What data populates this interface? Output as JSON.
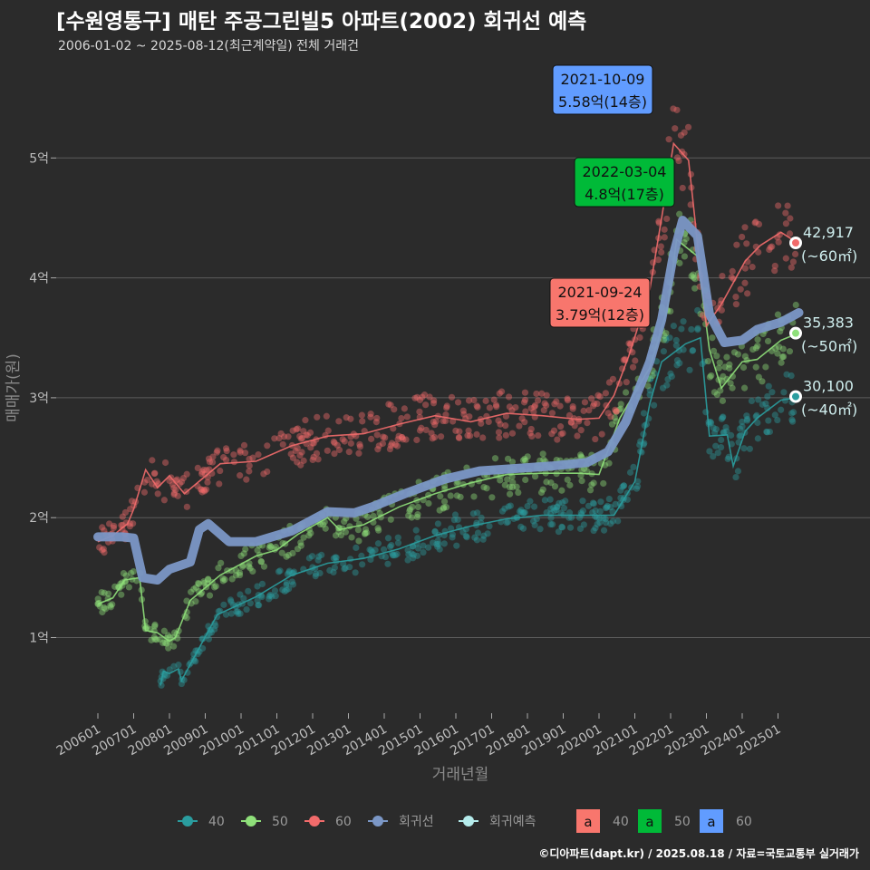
{
  "title": "[수원영통구] 매탄 주공그린빌5 아파트(2002) 회귀선 예측",
  "subtitle": "2006-01-02 ~ 2025-08-12(최근계약일) 전체 거래건",
  "footer": "©디아파트(dapt.kr) / 2025.08.18 / 자료=국토교통부 실거래가",
  "colors": {
    "s40": "#2a9d9f",
    "s50": "#8fe07a",
    "s60": "#f26b6b",
    "regression": "#7b97c6",
    "forecast": "#b5ecec",
    "box40": "#f8766d",
    "box50": "#00ba38",
    "box60": "#619cff"
  },
  "chart_data": {
    "type": "line",
    "xlabel": "거래년월",
    "ylabel": "매매가(원)",
    "x_tick_labels": [
      "200601",
      "200701",
      "200801",
      "200901",
      "201001",
      "201101",
      "201201",
      "201301",
      "201401",
      "201501",
      "201601",
      "201701",
      "201801",
      "201901",
      "202001",
      "202101",
      "202201",
      "202301",
      "202401",
      "202501"
    ],
    "y_tick_labels": [
      "1억",
      "2억",
      "3억",
      "4억",
      "5억"
    ],
    "ylim": [
      3500,
      58000
    ],
    "y_unit": "만원",
    "series": [
      {
        "name": "40",
        "key": "s40",
        "points": [
          [
            "2007-10",
            6000
          ],
          [
            "2007-11",
            7200
          ],
          [
            "2008-01",
            7000
          ],
          [
            "2008-04",
            7400
          ],
          [
            "2008-05",
            6400
          ],
          [
            "2009-05",
            11900
          ],
          [
            "2010-06",
            13400
          ],
          [
            "2011-06",
            15200
          ],
          [
            "2012-06",
            16200
          ],
          [
            "2013-06",
            16600
          ],
          [
            "2014-06",
            17400
          ],
          [
            "2015-06",
            18500
          ],
          [
            "2016-06",
            19300
          ],
          [
            "2017-06",
            19900
          ],
          [
            "2018-06",
            20200
          ],
          [
            "2019-06",
            20200
          ],
          [
            "2020-06",
            20200
          ],
          [
            "2021-01",
            23000
          ],
          [
            "2021-06",
            29500
          ],
          [
            "2021-10",
            33000
          ],
          [
            "2022-06",
            34500
          ],
          [
            "2022-11",
            35000
          ],
          [
            "2023-02",
            26800
          ],
          [
            "2023-08",
            26900
          ],
          [
            "2023-10",
            24300
          ],
          [
            "2024-02",
            27200
          ],
          [
            "2024-06",
            28300
          ],
          [
            "2025-02",
            29800
          ],
          [
            "2025-07",
            30000
          ]
        ]
      },
      {
        "name": "50",
        "key": "s50",
        "points": [
          [
            "2006-01",
            12800
          ],
          [
            "2006-06",
            13300
          ],
          [
            "2006-10",
            14800
          ],
          [
            "2007-03",
            15000
          ],
          [
            "2007-05",
            10600
          ],
          [
            "2007-09",
            10400
          ],
          [
            "2008-01",
            9700
          ],
          [
            "2008-03",
            10000
          ],
          [
            "2008-08",
            13100
          ],
          [
            "2009-06",
            15200
          ],
          [
            "2010-06",
            16800
          ],
          [
            "2011-01",
            17300
          ],
          [
            "2011-08",
            18600
          ],
          [
            "2012-06",
            20000
          ],
          [
            "2012-10",
            19000
          ],
          [
            "2013-06",
            19400
          ],
          [
            "2014-06",
            20900
          ],
          [
            "2015-06",
            22000
          ],
          [
            "2016-06",
            22900
          ],
          [
            "2017-06",
            23600
          ],
          [
            "2018-06",
            23700
          ],
          [
            "2019-06",
            23700
          ],
          [
            "2020-01",
            23600
          ],
          [
            "2020-08",
            28300
          ],
          [
            "2021-06",
            32500
          ],
          [
            "2021-12",
            37500
          ],
          [
            "2022-03",
            43200
          ],
          [
            "2022-10",
            41800
          ],
          [
            "2023-02",
            34000
          ],
          [
            "2023-06",
            30800
          ],
          [
            "2024-01",
            33000
          ],
          [
            "2024-06",
            33200
          ],
          [
            "2025-02",
            34800
          ],
          [
            "2025-07",
            35300
          ]
        ]
      },
      {
        "name": "60",
        "key": "s60",
        "points": [
          [
            "2006-01",
            18000
          ],
          [
            "2006-06",
            18500
          ],
          [
            "2006-11",
            19500
          ],
          [
            "2007-01",
            20700
          ],
          [
            "2007-05",
            24000
          ],
          [
            "2007-09",
            22500
          ],
          [
            "2008-01",
            23500
          ],
          [
            "2008-06",
            22000
          ],
          [
            "2009-06",
            24500
          ],
          [
            "2010-06",
            24700
          ],
          [
            "2011-06",
            26000
          ],
          [
            "2012-06",
            26800
          ],
          [
            "2013-06",
            27000
          ],
          [
            "2014-06",
            27800
          ],
          [
            "2015-06",
            28500
          ],
          [
            "2016-06",
            28000
          ],
          [
            "2017-06",
            28700
          ],
          [
            "2018-06",
            28500
          ],
          [
            "2019-06",
            28200
          ],
          [
            "2020-01",
            28300
          ],
          [
            "2020-06",
            30200
          ],
          [
            "2020-11",
            33500
          ],
          [
            "2021-06",
            39000
          ],
          [
            "2021-10",
            45000
          ],
          [
            "2022-02",
            51200
          ],
          [
            "2022-07",
            49800
          ],
          [
            "2023-01",
            36000
          ],
          [
            "2023-06",
            37800
          ],
          [
            "2024-02",
            41400
          ],
          [
            "2024-07",
            42700
          ],
          [
            "2025-02",
            43800
          ],
          [
            "2025-07",
            43000
          ]
        ]
      },
      {
        "name": "회귀선",
        "key": "regression",
        "points": [
          [
            "2006-01",
            18400
          ],
          [
            "2006-09",
            18400
          ],
          [
            "2007-01",
            18300
          ],
          [
            "2007-04",
            15000
          ],
          [
            "2007-09",
            14800
          ],
          [
            "2008-01",
            15700
          ],
          [
            "2008-08",
            16300
          ],
          [
            "2008-11",
            19000
          ],
          [
            "2009-02",
            19500
          ],
          [
            "2009-09",
            18000
          ],
          [
            "2010-06",
            18000
          ],
          [
            "2011-06",
            18900
          ],
          [
            "2012-06",
            20500
          ],
          [
            "2013-03",
            20400
          ],
          [
            "2013-09",
            20900
          ],
          [
            "2014-09",
            22100
          ],
          [
            "2015-09",
            23200
          ],
          [
            "2016-09",
            23900
          ],
          [
            "2017-09",
            24100
          ],
          [
            "2018-09",
            24300
          ],
          [
            "2019-09",
            24600
          ],
          [
            "2020-04",
            25500
          ],
          [
            "2020-10",
            28000
          ],
          [
            "2021-06",
            33000
          ],
          [
            "2021-10",
            36500
          ],
          [
            "2022-02",
            42000
          ],
          [
            "2022-05",
            44800
          ],
          [
            "2022-10",
            43500
          ],
          [
            "2023-02",
            37000
          ],
          [
            "2023-07",
            34600
          ],
          [
            "2024-01",
            34800
          ],
          [
            "2024-06",
            35700
          ],
          [
            "2025-02",
            36300
          ],
          [
            "2025-08",
            37100
          ]
        ]
      }
    ],
    "forecast_points": [
      {
        "series": "40",
        "x": "2025-08",
        "y": 30100,
        "label": "30,100",
        "area": "(~40㎡)"
      },
      {
        "series": "50",
        "x": "2025-08",
        "y": 35383,
        "label": "35,383",
        "area": "(~50㎡)"
      },
      {
        "series": "60",
        "x": "2025-08",
        "y": 42917,
        "label": "42,917",
        "area": "(~60㎡)"
      }
    ],
    "peak_annotations": [
      {
        "series": "40",
        "date": "2021-09-24",
        "price": "3.79억(12층)",
        "x": "2021-09",
        "y": 37900,
        "boxColor": "box40"
      },
      {
        "series": "50",
        "date": "2022-03-04",
        "price": "4.8억(17층)",
        "x": "2022-03",
        "y": 48000,
        "boxColor": "box50"
      },
      {
        "series": "60",
        "date": "2021-10-09",
        "price": "5.58억(14층)",
        "x": "2021-10",
        "y": 55800,
        "boxColor": "box60"
      }
    ],
    "legend": [
      {
        "label": "40",
        "key": "s40"
      },
      {
        "label": "50",
        "key": "s50"
      },
      {
        "label": "60",
        "key": "s60"
      },
      {
        "label": "회귀선",
        "key": "regression"
      },
      {
        "label": "회귀예측",
        "key": "forecast"
      }
    ],
    "legend_boxes": [
      {
        "glyph": "a",
        "label": "40",
        "key": "box40"
      },
      {
        "glyph": "a",
        "label": "50",
        "key": "box50"
      },
      {
        "glyph": "a",
        "label": "60",
        "key": "box60"
      }
    ],
    "legend_position": "bottom",
    "grid": true
  }
}
